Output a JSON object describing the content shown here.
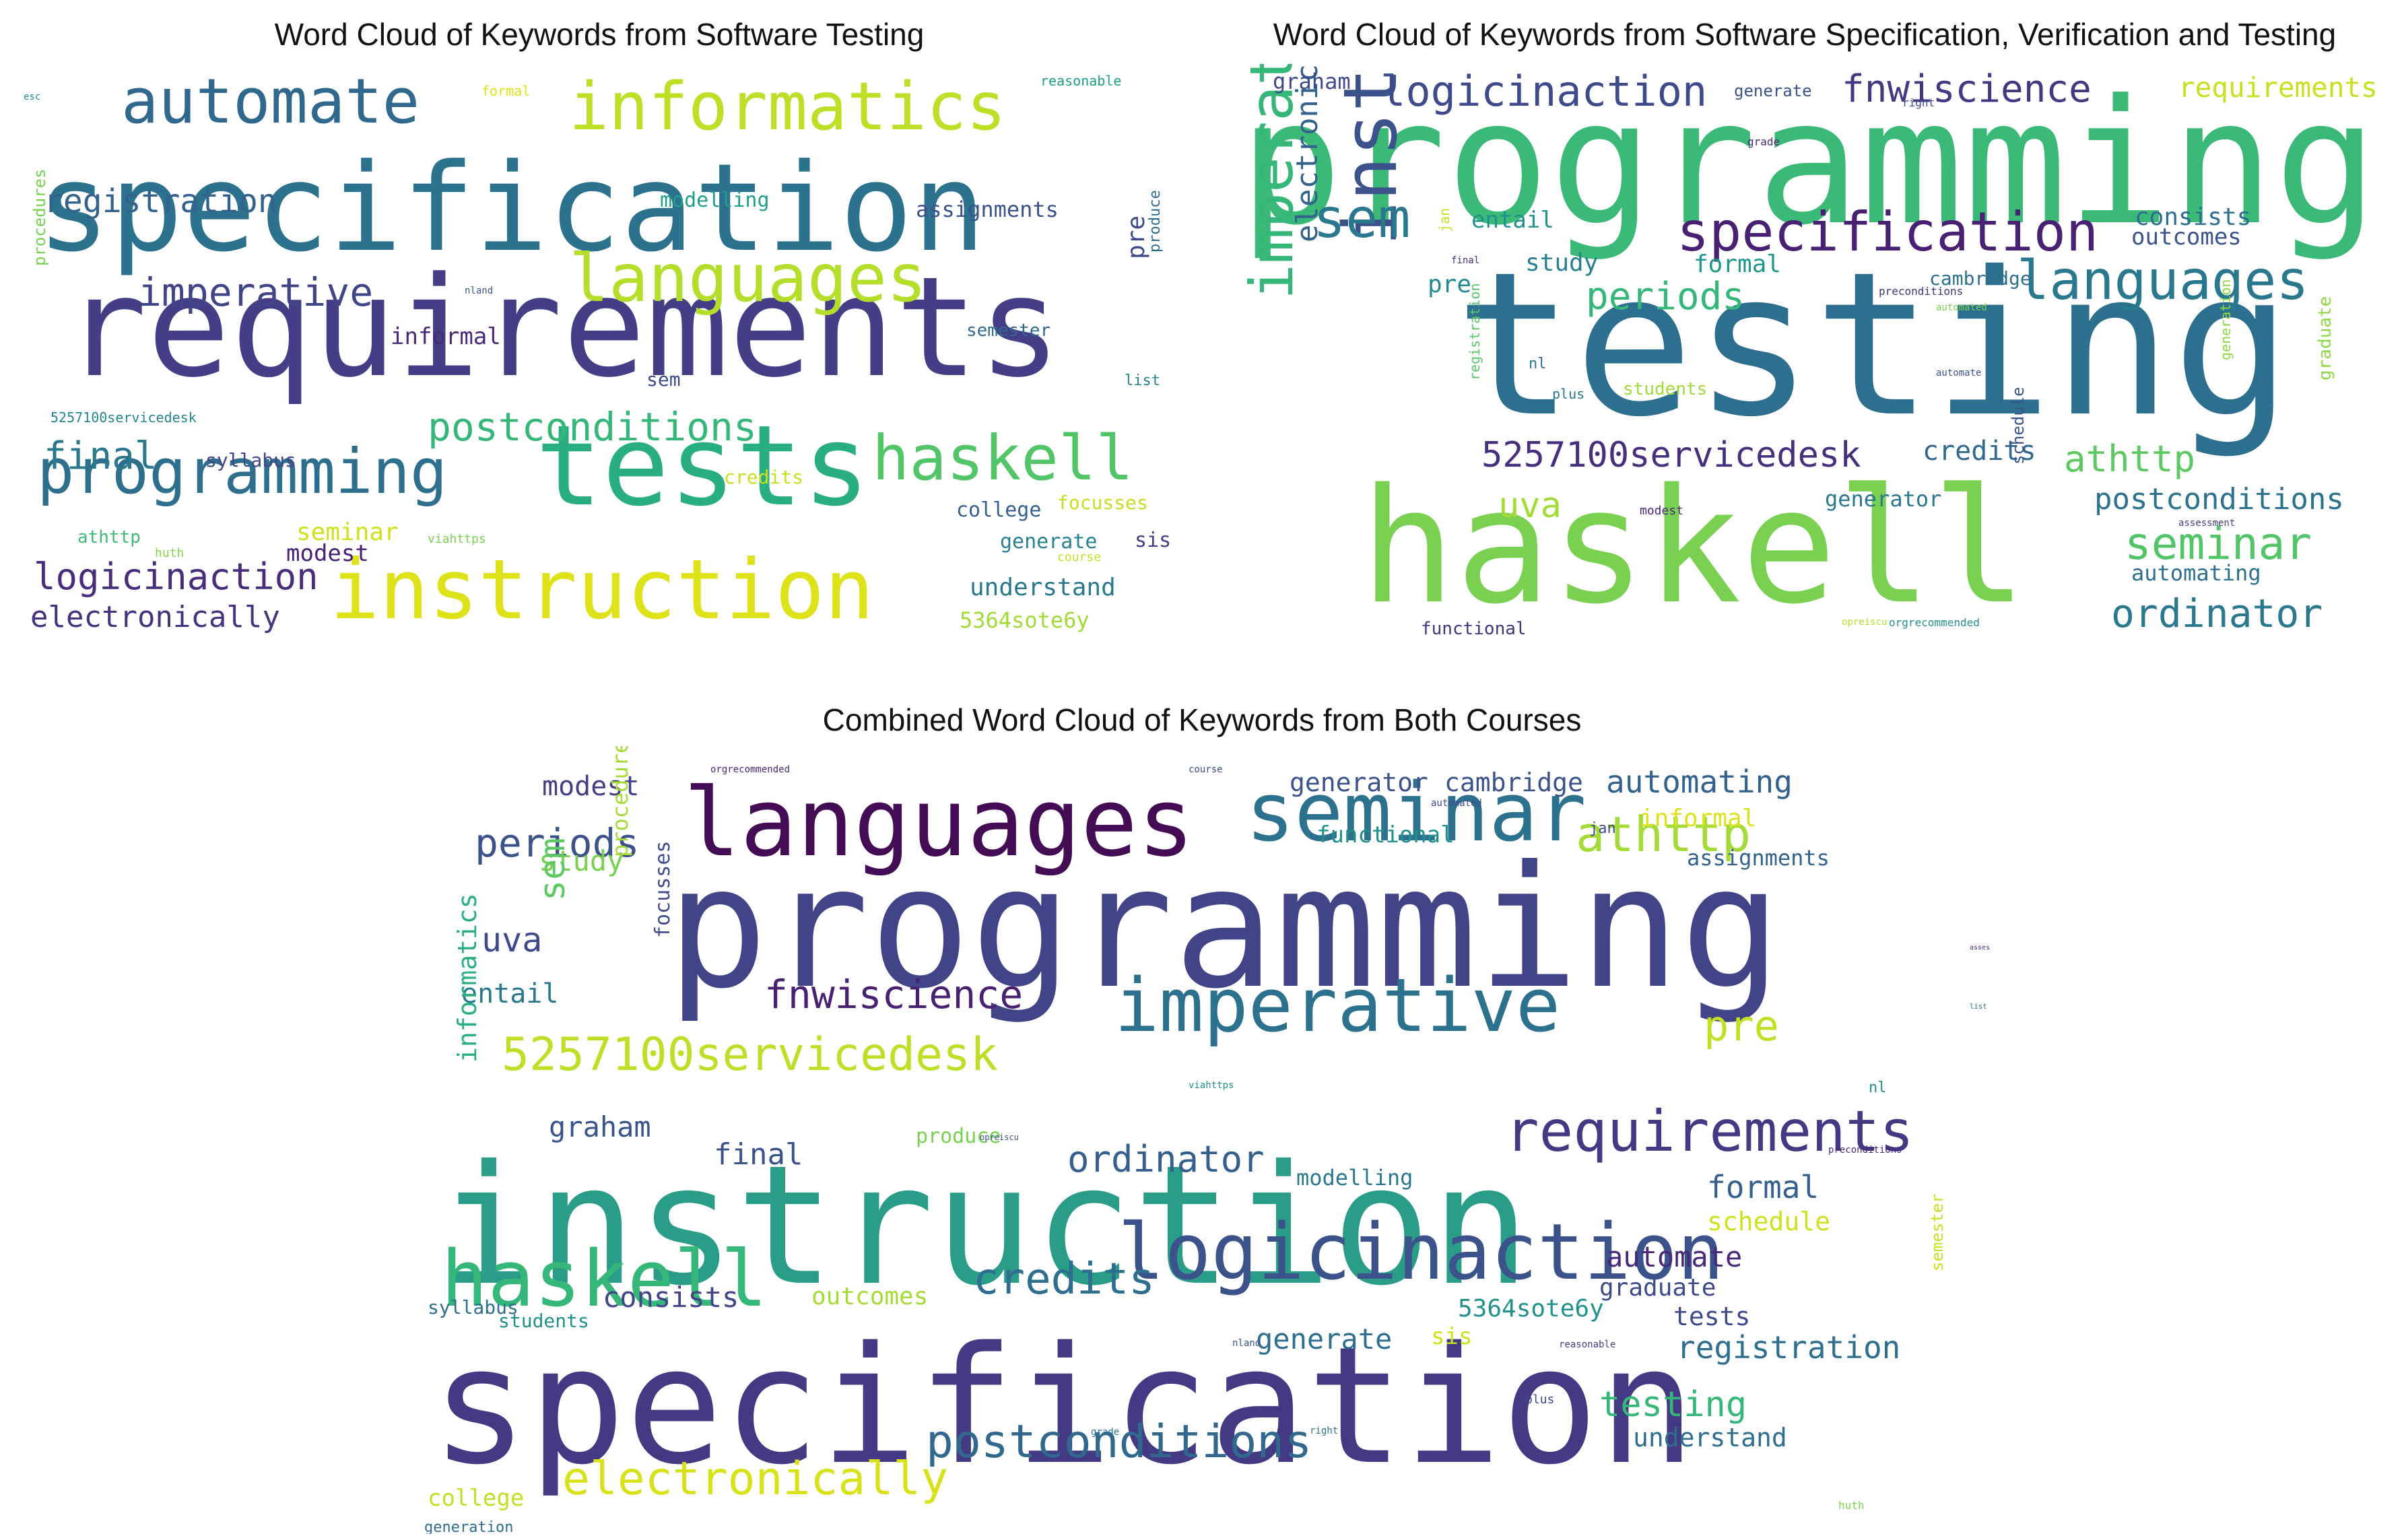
{
  "figure": {
    "clouds": [
      {
        "title": "Word Cloud of Keywords from Software Testing",
        "words": [
          {
            "text": "requirements",
            "color": "#433e85"
          },
          {
            "text": "specification",
            "color": "#2c728e"
          },
          {
            "text": "tests",
            "color": "#29af7f"
          },
          {
            "text": "instruction",
            "color": "#dde318"
          },
          {
            "text": "automate",
            "color": "#31688e"
          },
          {
            "text": "informatics",
            "color": "#bddf26"
          },
          {
            "text": "languages",
            "color": "#b5de2b"
          },
          {
            "text": "programming",
            "color": "#2e6f8e"
          },
          {
            "text": "haskell",
            "color": "#52c569"
          },
          {
            "text": "postconditions",
            "color": "#35b779"
          },
          {
            "text": "registration",
            "color": "#33638d"
          },
          {
            "text": "imperative",
            "color": "#414487"
          },
          {
            "text": "logicinaction",
            "color": "#472d7b"
          },
          {
            "text": "electronically",
            "color": "#46327e"
          },
          {
            "text": "final",
            "color": "#2a788e"
          },
          {
            "text": "understand",
            "color": "#2a788e"
          },
          {
            "text": "5364sote6y",
            "color": "#a2da37"
          },
          {
            "text": "assignments",
            "color": "#3b528b"
          },
          {
            "text": "modelling",
            "color": "#1f9e89"
          },
          {
            "text": "informal",
            "color": "#482878"
          },
          {
            "text": "sem",
            "color": "#3e4a89"
          },
          {
            "text": "modest",
            "color": "#482173"
          },
          {
            "text": "seminar",
            "color": "#d0e11c"
          },
          {
            "text": "syllabus",
            "color": "#414487"
          },
          {
            "text": "college",
            "color": "#355f8d"
          },
          {
            "text": "generate",
            "color": "#26828e"
          },
          {
            "text": "sis",
            "color": "#433e85"
          },
          {
            "text": "focusses",
            "color": "#c2df23"
          },
          {
            "text": "credits",
            "color": "#c8e020"
          },
          {
            "text": "athttp",
            "color": "#3fbc73"
          },
          {
            "text": "semester",
            "color": "#31688e"
          },
          {
            "text": "produce",
            "color": "#2e6e8e"
          },
          {
            "text": "pre",
            "color": "#3e4989"
          },
          {
            "text": "list",
            "color": "#25848e"
          },
          {
            "text": "procedures",
            "color": "#7ad151"
          },
          {
            "text": "5257100servicedesk",
            "color": "#24868e"
          },
          {
            "text": "huth",
            "color": "#86d549"
          },
          {
            "text": "viahttps",
            "color": "#7ad151"
          },
          {
            "text": "course",
            "color": "#c0df25"
          },
          {
            "text": "formal",
            "color": "#dde318"
          },
          {
            "text": "reasonable",
            "color": "#1f9f88"
          },
          {
            "text": "esc",
            "color": "#21918c"
          },
          {
            "text": "nland",
            "color": "#38588c"
          }
        ]
      },
      {
        "title": "Word Cloud of Keywords from Software Specification, Verification and Testing",
        "words": [
          {
            "text": "programming",
            "color": "#3aba76"
          },
          {
            "text": "testing",
            "color": "#2d6f8e"
          },
          {
            "text": "haskell",
            "color": "#7ad151"
          },
          {
            "text": "specification",
            "color": "#482173"
          },
          {
            "text": "languages",
            "color": "#2a788e"
          },
          {
            "text": "instruction",
            "color": "#3b528b"
          },
          {
            "text": "imperative",
            "color": "#35b779"
          },
          {
            "text": "electronically",
            "color": "#33638d"
          },
          {
            "text": "logicinaction",
            "color": "#3e4a89"
          },
          {
            "text": "fnwiscience",
            "color": "#453781"
          },
          {
            "text": "requirements",
            "color": "#c8e020"
          },
          {
            "text": "5257100servicedesk",
            "color": "#46307e"
          },
          {
            "text": "seminar",
            "color": "#52c569"
          },
          {
            "text": "ordinator",
            "color": "#2a788e"
          },
          {
            "text": "postconditions",
            "color": "#2c728e"
          },
          {
            "text": "periods",
            "color": "#35b779"
          },
          {
            "text": "sem",
            "color": "#2a788e"
          },
          {
            "text": "athttp",
            "color": "#5ec962"
          },
          {
            "text": "credits",
            "color": "#31688e"
          },
          {
            "text": "uva",
            "color": "#a5db36"
          },
          {
            "text": "consists",
            "color": "#2e6e8e"
          },
          {
            "text": "outcomes",
            "color": "#3b528b"
          },
          {
            "text": "study",
            "color": "#26818e"
          },
          {
            "text": "formal",
            "color": "#1f988b"
          },
          {
            "text": "entail",
            "color": "#21918c"
          },
          {
            "text": "pre",
            "color": "#238a8d"
          },
          {
            "text": "generator",
            "color": "#2a788e"
          },
          {
            "text": "automating",
            "color": "#2e6e8e"
          },
          {
            "text": "schedule",
            "color": "#39568c"
          },
          {
            "text": "graham",
            "color": "#3e4989"
          },
          {
            "text": "cambridge",
            "color": "#2d708e"
          },
          {
            "text": "students",
            "color": "#a0da39"
          },
          {
            "text": "functional",
            "color": "#46337f"
          },
          {
            "text": "graduate",
            "color": "#8fd744"
          },
          {
            "text": "generate",
            "color": "#3b528b"
          },
          {
            "text": "registration",
            "color": "#56c667"
          },
          {
            "text": "nl",
            "color": "#2c728e"
          },
          {
            "text": "plus",
            "color": "#2a788e"
          },
          {
            "text": "modest",
            "color": "#482878"
          },
          {
            "text": "right",
            "color": "#3e4989"
          },
          {
            "text": "grade",
            "color": "#482878"
          },
          {
            "text": "preconditions",
            "color": "#46327e"
          },
          {
            "text": "automated",
            "color": "#7ad151"
          },
          {
            "text": "automate",
            "color": "#3b528b"
          },
          {
            "text": "generation",
            "color": "#8fd744"
          },
          {
            "text": "assessment",
            "color": "#433e85"
          },
          {
            "text": "jan",
            "color": "#c8e020"
          },
          {
            "text": "final",
            "color": "#472d7b"
          },
          {
            "text": "opreiscu",
            "color": "#b5de2b"
          },
          {
            "text": "orgrecommended",
            "color": "#21918c"
          }
        ]
      },
      {
        "title": "Combined Word Cloud of Keywords from Both Courses",
        "words": [
          {
            "text": "programming",
            "color": "#414487"
          },
          {
            "text": "instruction",
            "color": "#2a9d88"
          },
          {
            "text": "specification",
            "color": "#443983"
          },
          {
            "text": "languages",
            "color": "#440c55"
          },
          {
            "text": "seminar",
            "color": "#2c728e"
          },
          {
            "text": "imperative",
            "color": "#2c728e"
          },
          {
            "text": "logicinaction",
            "color": "#3b528b"
          },
          {
            "text": "haskell",
            "color": "#35b779"
          },
          {
            "text": "requirements",
            "color": "#443983"
          },
          {
            "text": "5257100servicedesk",
            "color": "#bddf26"
          },
          {
            "text": "postconditions",
            "color": "#31688e"
          },
          {
            "text": "electronically",
            "color": "#d8e219"
          },
          {
            "text": "credits",
            "color": "#2e6e8e"
          },
          {
            "text": "fnwiscience",
            "color": "#482173"
          },
          {
            "text": "ordinator",
            "color": "#355f8d"
          },
          {
            "text": "periods",
            "color": "#3b528b"
          },
          {
            "text": "athttp",
            "color": "#a5db36"
          },
          {
            "text": "automating",
            "color": "#33638d"
          },
          {
            "text": "generator",
            "color": "#3b528b"
          },
          {
            "text": "cambridge",
            "color": "#3b528b"
          },
          {
            "text": "modest",
            "color": "#433e85"
          },
          {
            "text": "study",
            "color": "#7ad151"
          },
          {
            "text": "uva",
            "color": "#3e4a89"
          },
          {
            "text": "entail",
            "color": "#2a788e"
          },
          {
            "text": "sem",
            "color": "#5ec962"
          },
          {
            "text": "pre",
            "color": "#c2df23"
          },
          {
            "text": "graham",
            "color": "#39568c"
          },
          {
            "text": "final",
            "color": "#3b528b"
          },
          {
            "text": "formal",
            "color": "#355f8d"
          },
          {
            "text": "schedule",
            "color": "#cde11d"
          },
          {
            "text": "automate",
            "color": "#482878"
          },
          {
            "text": "graduate",
            "color": "#3e4a89"
          },
          {
            "text": "tests",
            "color": "#3e4a89"
          },
          {
            "text": "registration",
            "color": "#2e6e8e"
          },
          {
            "text": "testing",
            "color": "#35b779"
          },
          {
            "text": "understand",
            "color": "#2e6e8e"
          },
          {
            "text": "consists",
            "color": "#414487"
          },
          {
            "text": "outcomes",
            "color": "#a5db36"
          },
          {
            "text": "generate",
            "color": "#2e6e8e"
          },
          {
            "text": "sis",
            "color": "#cde11d"
          },
          {
            "text": "5364sote6y",
            "color": "#21918c"
          },
          {
            "text": "informal",
            "color": "#dde318"
          },
          {
            "text": "functional",
            "color": "#21918c"
          },
          {
            "text": "assignments",
            "color": "#33638d"
          },
          {
            "text": "modelling",
            "color": "#2a788e"
          },
          {
            "text": "produce",
            "color": "#7ad151"
          },
          {
            "text": "students",
            "color": "#21918c"
          },
          {
            "text": "syllabus",
            "color": "#2e6e8e"
          },
          {
            "text": "college",
            "color": "#c2df23"
          },
          {
            "text": "generation",
            "color": "#2e6e8e"
          },
          {
            "text": "informatics",
            "color": "#29af7f"
          },
          {
            "text": "procedures",
            "color": "#a5db36"
          },
          {
            "text": "focusses",
            "color": "#3e4a89"
          },
          {
            "text": "semester",
            "color": "#c8e020"
          },
          {
            "text": "orgrecommended",
            "color": "#482878"
          },
          {
            "text": "course",
            "color": "#3e4989"
          },
          {
            "text": "automated",
            "color": "#3e4989"
          },
          {
            "text": "jan",
            "color": "#3e4989"
          },
          {
            "text": "nl",
            "color": "#21918c"
          },
          {
            "text": "list",
            "color": "#2c728e"
          },
          {
            "text": "assessment",
            "color": "#482878"
          },
          {
            "text": "preconditions",
            "color": "#482878"
          },
          {
            "text": "reasonable",
            "color": "#443983"
          },
          {
            "text": "huth",
            "color": "#7ad151"
          },
          {
            "text": "plus",
            "color": "#3e4989"
          },
          {
            "text": "right",
            "color": "#2c728e"
          },
          {
            "text": "grade",
            "color": "#2c728e"
          },
          {
            "text": "nland",
            "color": "#3b528b"
          },
          {
            "text": "viahttps",
            "color": "#21918c"
          },
          {
            "text": "opreiscu",
            "color": "#3b528b"
          }
        ]
      }
    ]
  }
}
